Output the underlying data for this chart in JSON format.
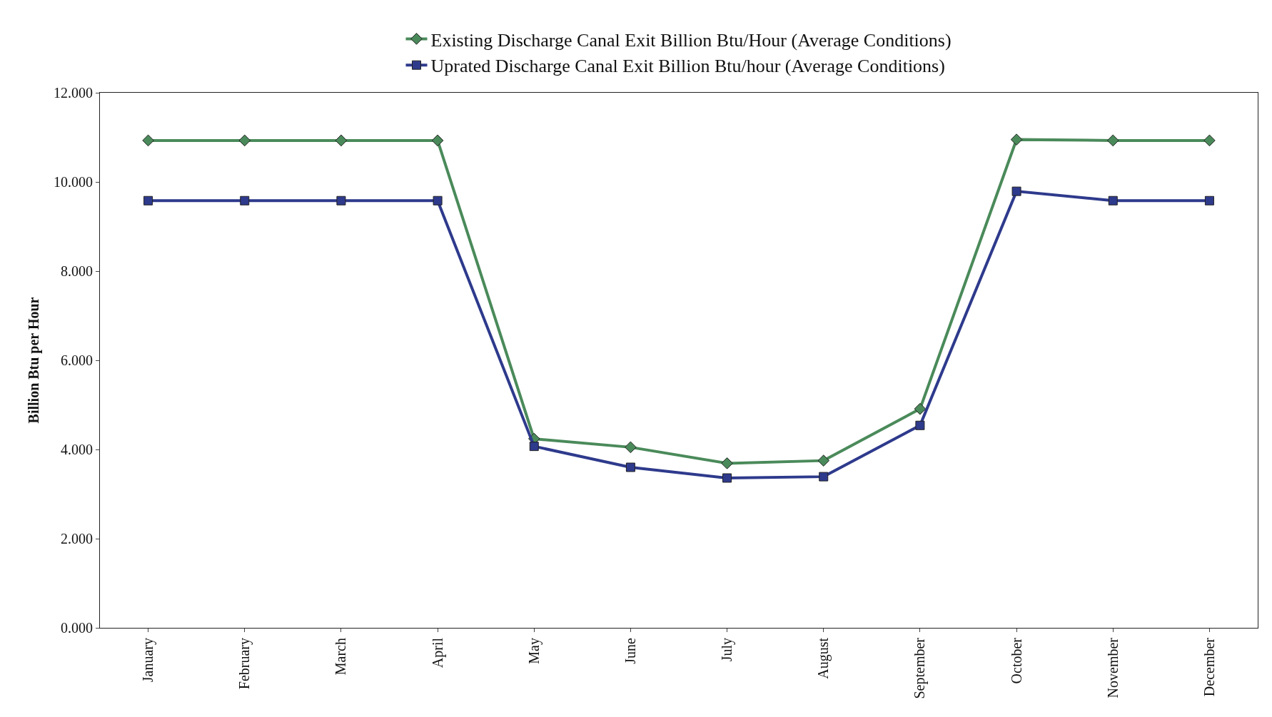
{
  "chart_data": {
    "type": "line",
    "ylabel": "Billion Btu per Hour",
    "categories": [
      "January",
      "February",
      "March",
      "April",
      "May",
      "June",
      "July",
      "August",
      "September",
      "October",
      "November",
      "December"
    ],
    "series": [
      {
        "name": "Existing Discharge Canal Exit Billion Btu/Hour (Average Conditions)",
        "color": "#4a8a5a",
        "marker": "diamond",
        "values": [
          10.93,
          10.93,
          10.93,
          10.93,
          4.24,
          4.05,
          3.69,
          3.75,
          4.91,
          10.95,
          10.93,
          10.93
        ]
      },
      {
        "name": "Uprated Discharge Canal Exit Billion Btu/hour (Average Conditions)",
        "color": "#2e3a8c",
        "marker": "square",
        "values": [
          9.58,
          9.58,
          9.58,
          9.58,
          4.07,
          3.6,
          3.36,
          3.39,
          4.54,
          9.79,
          9.58,
          9.58
        ]
      }
    ],
    "ylim": [
      0,
      12
    ],
    "yticks": [
      {
        "value": 0,
        "label": "0.000"
      },
      {
        "value": 2,
        "label": "2.000"
      },
      {
        "value": 4,
        "label": "4.000"
      },
      {
        "value": 6,
        "label": "6.000"
      },
      {
        "value": 8,
        "label": "8.000"
      },
      {
        "value": 10,
        "label": "10.000"
      },
      {
        "value": 12,
        "label": "12.000"
      }
    ],
    "legend": "top",
    "line_style": "solid"
  }
}
